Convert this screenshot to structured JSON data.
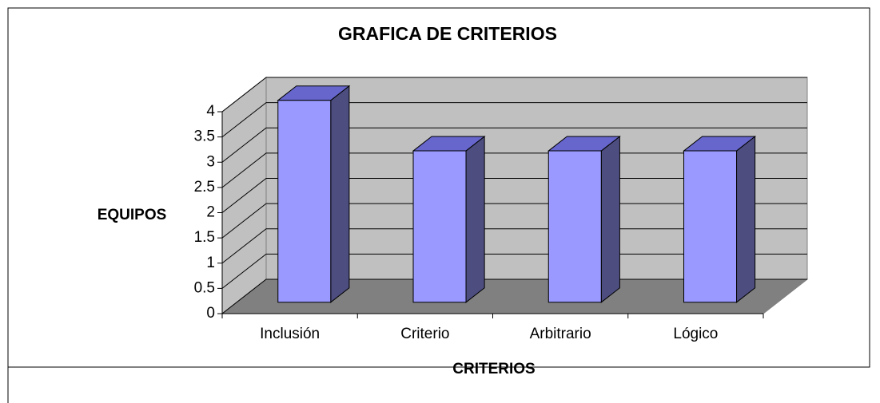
{
  "chart_data": {
    "type": "bar3d",
    "title": "GRAFICA DE CRITERIOS",
    "x_label": "CRITERIOS",
    "y_label": "EQUIPOS",
    "categories": [
      "Inclusión",
      "Criterio",
      "Arbitrario",
      "Lógico"
    ],
    "values": [
      4,
      3,
      3,
      3
    ],
    "color": "#9999ff",
    "ylim": [
      0,
      4
    ],
    "yticks": [
      0,
      0.5,
      1,
      1.5,
      2,
      2.5,
      3,
      3.5,
      4
    ],
    "grid": true
  }
}
